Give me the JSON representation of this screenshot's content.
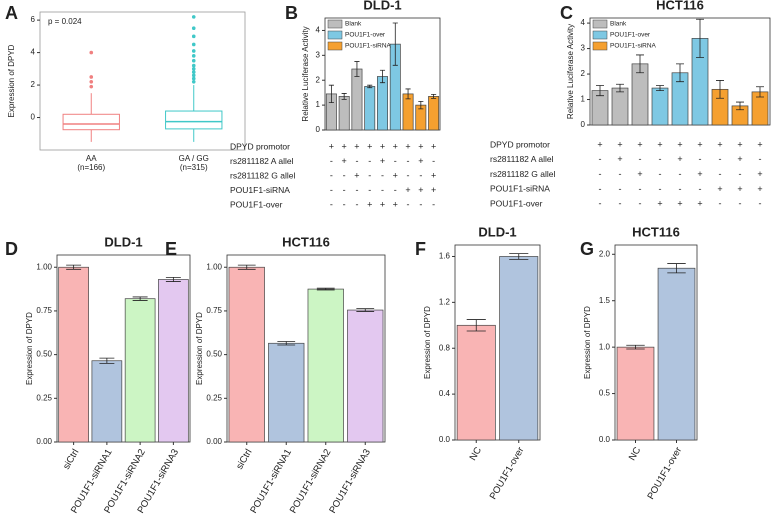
{
  "chart_data": [
    {
      "type": "box",
      "panel": "A",
      "annotation": "p = 0.024",
      "y_label": "Expression of DPYD",
      "categories": [
        "AA",
        "GA / GG"
      ],
      "category_notes": [
        "(n=166)",
        "(n=315)"
      ],
      "colors": [
        "#f08080",
        "#40c8c8"
      ],
      "boxes": [
        {
          "whisker_low": -1.5,
          "q1": -0.75,
          "median": -0.4,
          "q3": 0.2,
          "whisker_high": 1.5,
          "outliers": [
            1.9,
            2.2,
            2.5,
            4.0
          ]
        },
        {
          "whisker_low": -1.5,
          "q1": -0.7,
          "median": -0.25,
          "q3": 0.4,
          "whisker_high": 2.0,
          "outliers": [
            2.2,
            2.4,
            2.6,
            2.8,
            3.0,
            3.2,
            3.5,
            3.8,
            4.1,
            4.5,
            5.0,
            5.5,
            6.2
          ]
        }
      ],
      "ylim": [
        -2,
        6.5
      ],
      "yticks": [
        0,
        2,
        4,
        6
      ],
      "grid": false
    },
    {
      "type": "bar",
      "panel": "B",
      "title": "DLD-1",
      "y_label": "Relative Luciferase Activity",
      "series": [
        {
          "name": "Blank",
          "color": "#bdbdbd",
          "values": [
            1.45,
            1.35,
            2.45,
            null,
            null,
            null,
            null,
            null,
            null
          ]
        },
        {
          "name": "POU1F1-over",
          "color": "#7ec8e3",
          "values": [
            null,
            null,
            null,
            1.75,
            2.15,
            3.45,
            null,
            null,
            null
          ]
        },
        {
          "name": "POU1F1-siRNA",
          "color": "#f5a030",
          "values": [
            null,
            null,
            null,
            null,
            null,
            null,
            1.45,
            1.0,
            1.35
          ]
        }
      ],
      "errors": [
        0.35,
        0.12,
        0.3,
        0.05,
        0.25,
        0.85,
        0.2,
        0.15,
        0.08
      ],
      "ylim": [
        0,
        4.5
      ],
      "yticks": [
        0,
        1,
        2,
        3,
        4
      ],
      "grid": false,
      "legend": "top-left",
      "table": [
        {
          "label": "DPYD promotor",
          "cells": [
            "+",
            "+",
            "+",
            "+",
            "+",
            "+",
            "+",
            "+",
            "+"
          ]
        },
        {
          "label": "rs2811182 A allel",
          "cells": [
            "-",
            "+",
            "-",
            "-",
            "+",
            "-",
            "-",
            "+",
            "-"
          ]
        },
        {
          "label": "rs2811182 G allel",
          "cells": [
            "-",
            "-",
            "+",
            "-",
            "-",
            "+",
            "-",
            "-",
            "+"
          ]
        },
        {
          "label": "POU1F1-siRNA",
          "cells": [
            "-",
            "-",
            "-",
            "-",
            "-",
            "-",
            "+",
            "+",
            "+"
          ]
        },
        {
          "label": "POU1F1-over",
          "cells": [
            "-",
            "-",
            "-",
            "+",
            "+",
            "+",
            "-",
            "-",
            "-"
          ]
        }
      ]
    },
    {
      "type": "bar",
      "panel": "C",
      "title": "HCT116",
      "y_label": "Relative Luciferase Activity",
      "series": [
        {
          "name": "Blank",
          "color": "#bdbdbd",
          "values": [
            1.35,
            1.45,
            2.4,
            null,
            null,
            null,
            null,
            null,
            null
          ]
        },
        {
          "name": "POU1F1-over",
          "color": "#7ec8e3",
          "values": [
            null,
            null,
            null,
            1.45,
            2.05,
            3.4,
            null,
            null,
            null
          ]
        },
        {
          "name": "POU1F1-siRNA",
          "color": "#f5a030",
          "values": [
            null,
            null,
            null,
            null,
            null,
            null,
            1.4,
            0.75,
            1.3
          ]
        }
      ],
      "errors": [
        0.2,
        0.15,
        0.35,
        0.1,
        0.35,
        0.75,
        0.35,
        0.15,
        0.2
      ],
      "ylim": [
        0,
        4.2
      ],
      "yticks": [
        0,
        1,
        2,
        3,
        4
      ],
      "grid": false,
      "legend": "top-left",
      "table": [
        {
          "label": "DPYD promotor",
          "cells": [
            "+",
            "+",
            "+",
            "+",
            "+",
            "+",
            "+",
            "+",
            "+"
          ]
        },
        {
          "label": "rs2811182 A allel",
          "cells": [
            "-",
            "+",
            "-",
            "-",
            "+",
            "-",
            "-",
            "+",
            "-"
          ]
        },
        {
          "label": "rs2811182 G allel",
          "cells": [
            "-",
            "-",
            "+",
            "-",
            "-",
            "+",
            "-",
            "-",
            "+"
          ]
        },
        {
          "label": "POU1F1-siRNA",
          "cells": [
            "-",
            "-",
            "-",
            "-",
            "-",
            "-",
            "+",
            "+",
            "+"
          ]
        },
        {
          "label": "POU1F1-over",
          "cells": [
            "-",
            "-",
            "-",
            "+",
            "+",
            "+",
            "-",
            "-",
            "-"
          ]
        }
      ]
    },
    {
      "type": "bar",
      "panel": "D",
      "title": "DLD-1",
      "y_label": "Expression of DPYD",
      "categories": [
        "siCtrl",
        "POU1F1-siRNA1",
        "POU1F1-siRNA2",
        "POU1F1-siRNA3"
      ],
      "values": [
        1.0,
        0.465,
        0.82,
        0.93
      ],
      "errors": [
        0.012,
        0.015,
        0.01,
        0.012
      ],
      "colors": [
        "#f9b4b4",
        "#b0c4de",
        "#ccf5c4",
        "#e3c8f0"
      ],
      "ylim": [
        0,
        1.07
      ],
      "yticks": [
        {
          "value": 0,
          "label": "0.00"
        },
        {
          "value": 0.25,
          "label": "0.25"
        },
        {
          "value": 0.5,
          "label": "0.50"
        },
        {
          "value": 0.75,
          "label": "0.75"
        },
        {
          "value": 1,
          "label": "1.00"
        }
      ],
      "grid": false
    },
    {
      "type": "bar",
      "panel": "E",
      "title": "HCT116",
      "y_label": "Expression of DPYD",
      "categories": [
        "siCtrl",
        "POU1F1-siRNA1",
        "POU1F1-siRNA2",
        "POU1F1-siRNA3"
      ],
      "values": [
        1.0,
        0.565,
        0.875,
        0.755
      ],
      "errors": [
        0.012,
        0.01,
        0.005,
        0.008
      ],
      "colors": [
        "#f9b4b4",
        "#b0c4de",
        "#ccf5c4",
        "#e3c8f0"
      ],
      "ylim": [
        0,
        1.07
      ],
      "yticks": [
        {
          "value": 0,
          "label": "0.00"
        },
        {
          "value": 0.25,
          "label": "0.25"
        },
        {
          "value": 0.5,
          "label": "0.50"
        },
        {
          "value": 0.75,
          "label": "0.75"
        },
        {
          "value": 1,
          "label": "1.00"
        }
      ],
      "grid": false
    },
    {
      "type": "bar",
      "panel": "F",
      "title": "DLD-1",
      "y_label": "Expression of DPYD",
      "categories": [
        "NC",
        "POU1F1-over"
      ],
      "values": [
        1.0,
        1.6
      ],
      "errors": [
        0.05,
        0.025
      ],
      "colors": [
        "#f9b4b4",
        "#b0c4de"
      ],
      "ylim": [
        0,
        1.7
      ],
      "yticks": [
        {
          "value": 0,
          "label": "0.0"
        },
        {
          "value": 0.4,
          "label": "0.4"
        },
        {
          "value": 0.8,
          "label": "0.8"
        },
        {
          "value": 1.2,
          "label": "1.2"
        },
        {
          "value": 1.6,
          "label": "1.6"
        }
      ],
      "grid": false
    },
    {
      "type": "bar",
      "panel": "G",
      "title": "HCT116",
      "y_label": "Expression of DPYD",
      "categories": [
        "NC",
        "POU1F1-over"
      ],
      "values": [
        1.0,
        1.85
      ],
      "errors": [
        0.02,
        0.05
      ],
      "colors": [
        "#f9b4b4",
        "#b0c4de"
      ],
      "ylim": [
        0,
        2.1
      ],
      "yticks": [
        {
          "value": 0,
          "label": "0.0"
        },
        {
          "value": 0.5,
          "label": "0.5"
        },
        {
          "value": 1,
          "label": "1.0"
        },
        {
          "value": 1.5,
          "label": "1.5"
        },
        {
          "value": 2,
          "label": "2.0"
        }
      ],
      "grid": false
    }
  ]
}
